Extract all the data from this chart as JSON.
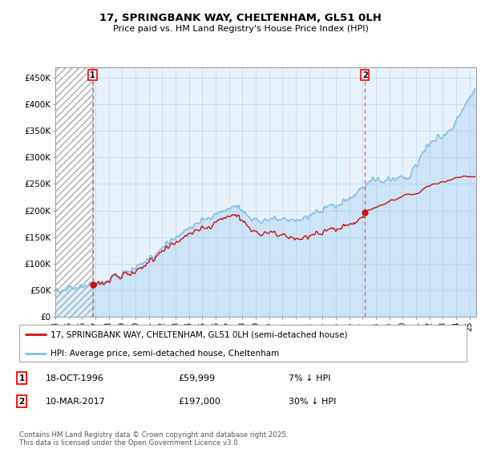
{
  "title": "17, SPRINGBANK WAY, CHELTENHAM, GL51 0LH",
  "subtitle": "Price paid vs. HM Land Registry's House Price Index (HPI)",
  "hpi_label": "HPI: Average price, semi-detached house, Cheltenham",
  "property_label": "17, SPRINGBANK WAY, CHELTENHAM, GL51 0LH (semi-detached house)",
  "annotation1_date": "18-OCT-1996",
  "annotation1_price": "£59,999",
  "annotation1_hpi": "7% ↓ HPI",
  "annotation2_date": "10-MAR-2017",
  "annotation2_price": "£197,000",
  "annotation2_hpi": "30% ↓ HPI",
  "sale1_year": 1996.79,
  "sale1_price": 59999,
  "sale2_year": 2017.18,
  "sale2_price": 197000,
  "ylim": [
    0,
    470000
  ],
  "xlim_start": 1994.0,
  "xlim_end": 2025.5,
  "hpi_color": "#7bbde8",
  "hpi_fill_color": "#daeaf7",
  "property_color": "#cc1111",
  "vline_color": "#e06060",
  "background_color": "#ffffff",
  "plot_bg_color": "#e8f2fb",
  "grid_color": "#c0d4e8",
  "footer": "Contains HM Land Registry data © Crown copyright and database right 2025.\nThis data is licensed under the Open Government Licence v3.0.",
  "yticks": [
    0,
    50000,
    100000,
    150000,
    200000,
    250000,
    300000,
    350000,
    400000,
    450000
  ],
  "ytick_labels": [
    "£0",
    "£50K",
    "£100K",
    "£150K",
    "£200K",
    "£250K",
    "£300K",
    "£350K",
    "£400K",
    "£450K"
  ]
}
